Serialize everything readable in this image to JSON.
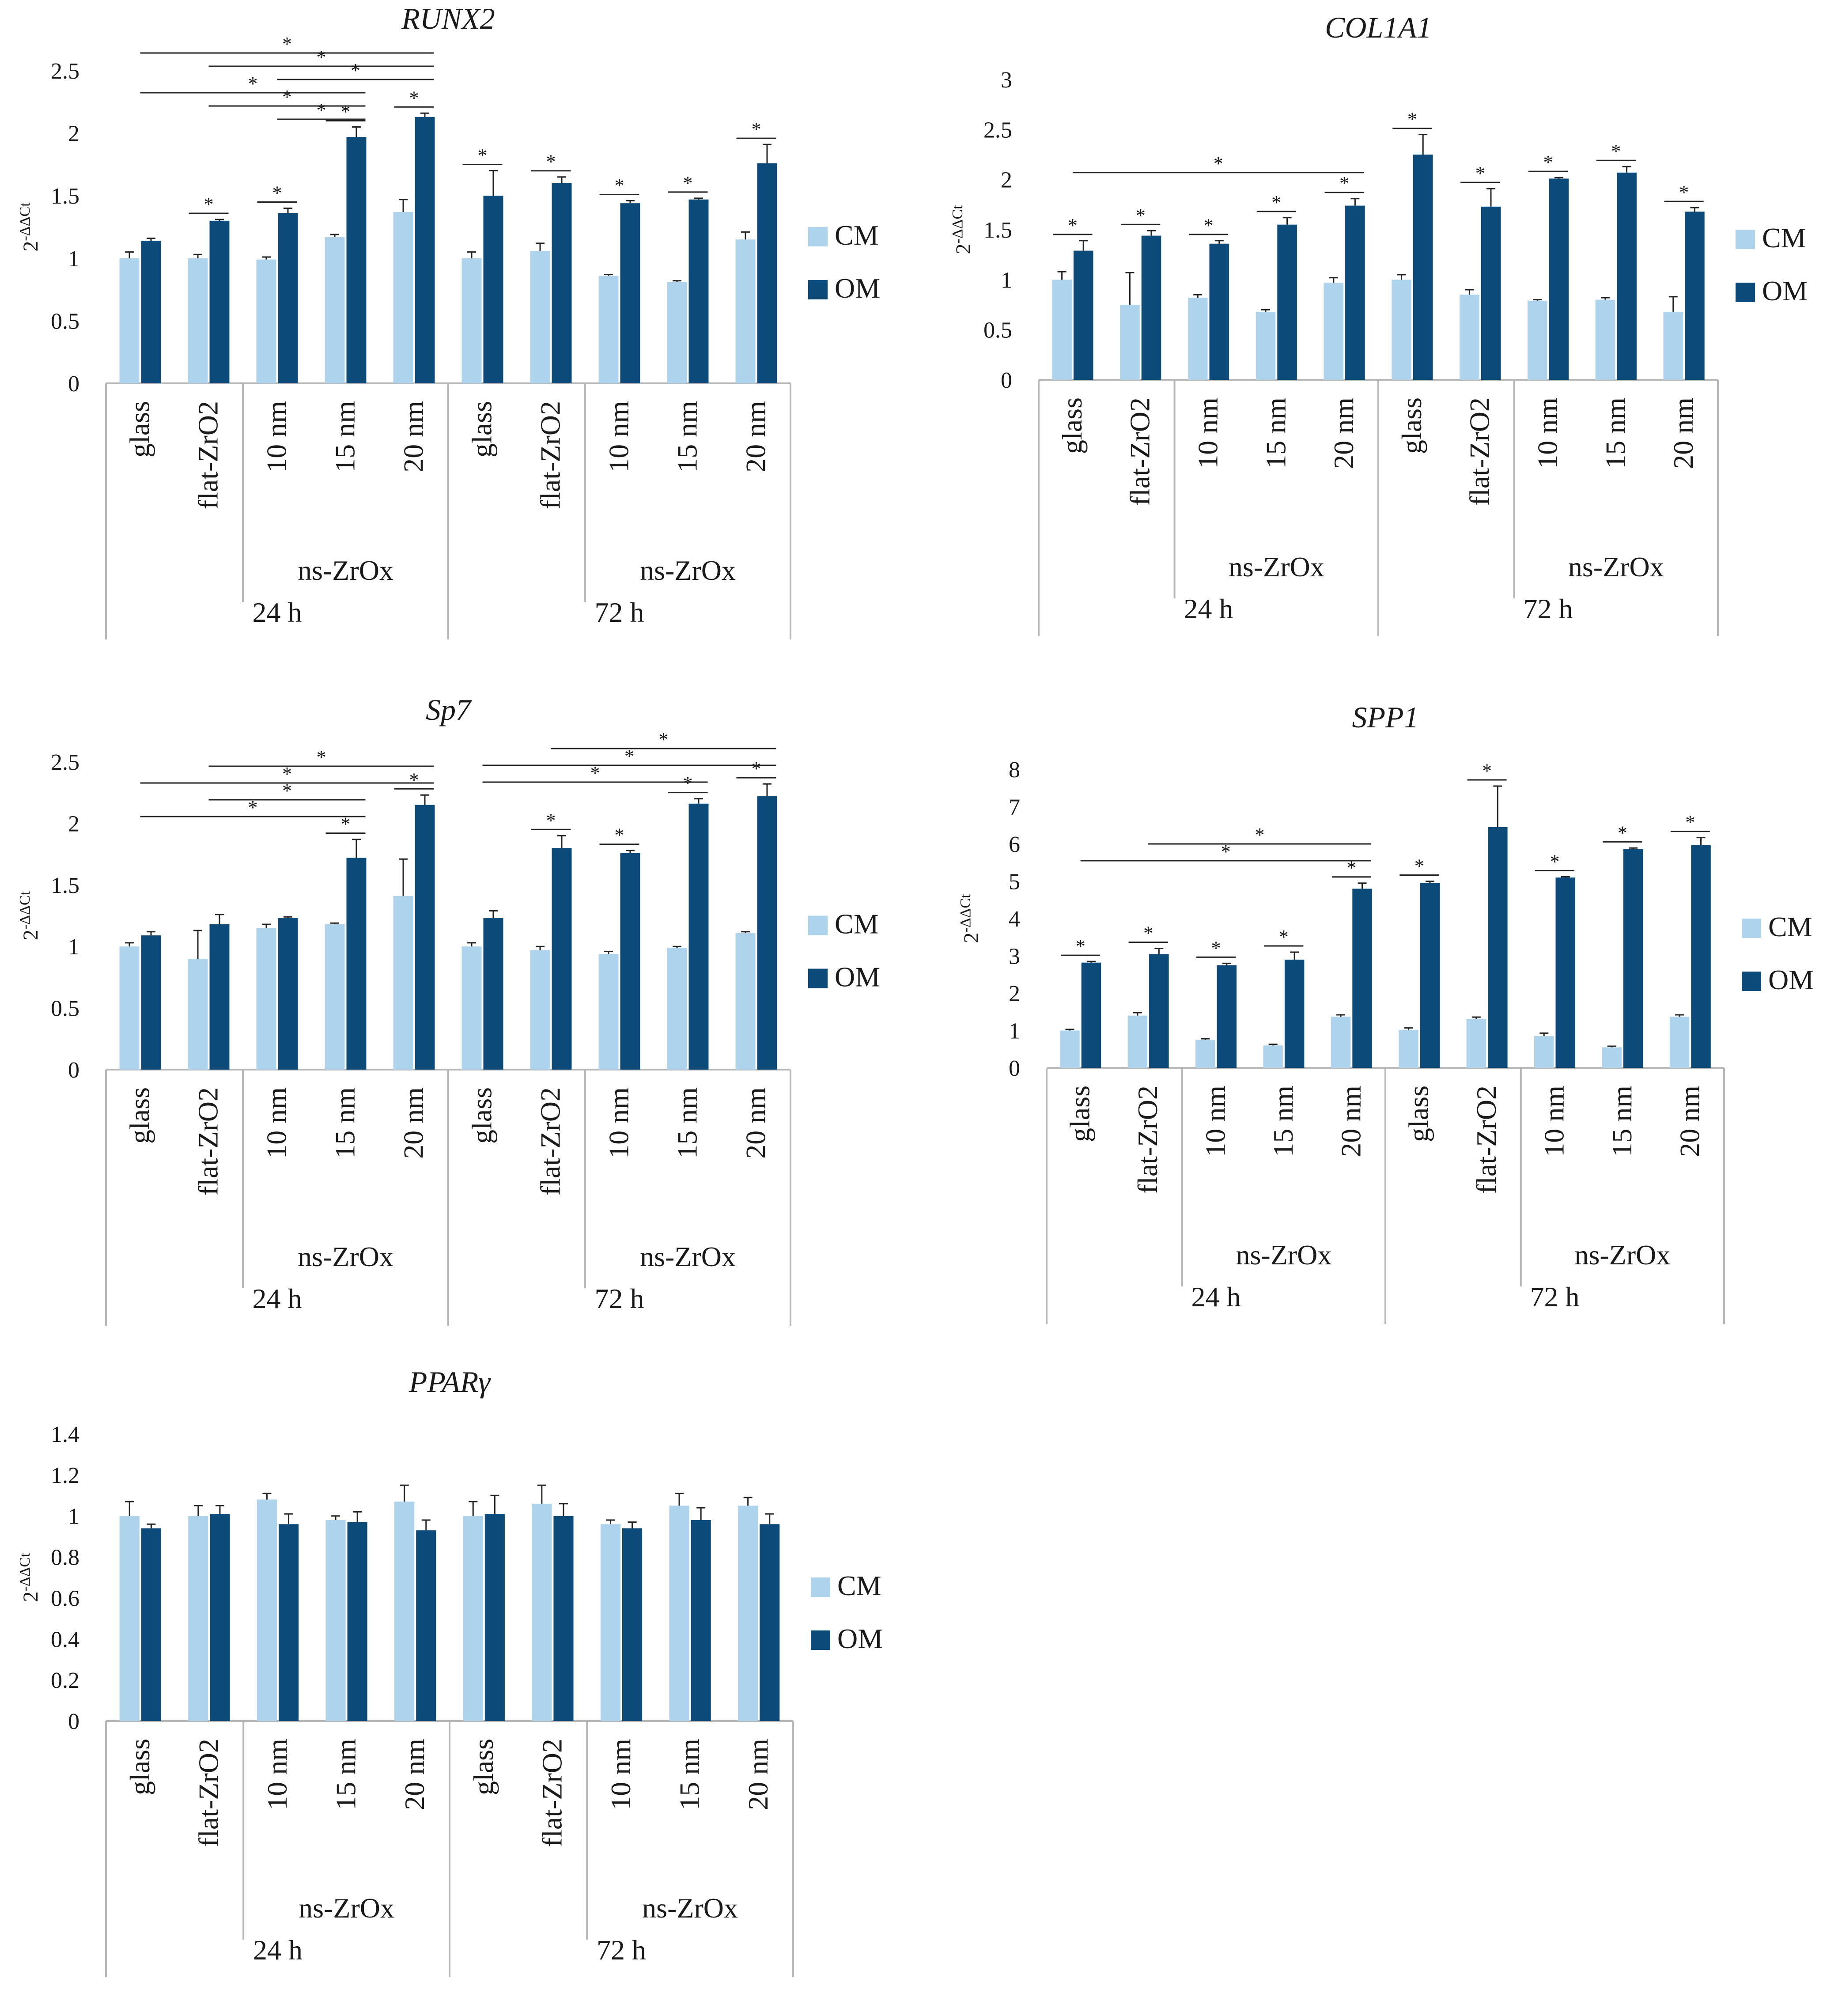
{
  "figure": {
    "categories": [
      "glass",
      "flat-ZrO2",
      "10 nm",
      "15 nm",
      "20 nm",
      "glass",
      "flat-ZrO2",
      "10 nm",
      "15 nm",
      "20 nm"
    ],
    "subgroup_label": "ns-ZrOx",
    "time_labels": [
      "24 h",
      "72 h"
    ],
    "ylabel": {
      "base": "2",
      "sup": "-ΔΔCt"
    },
    "legend": [
      "CM",
      "OM"
    ],
    "significance_mark": "*",
    "colors": {
      "CM": "#aed3ec",
      "OM": "#0c4a7a",
      "axis": "#b7b7b7",
      "text": "#1a1a1a"
    }
  },
  "chart_data": [
    {
      "type": "bar",
      "title": "RUNX2",
      "ylim": [
        0,
        2.5
      ],
      "ytick_labels": [
        "0",
        "0.5",
        "1",
        "1.5",
        "2",
        "2.5"
      ],
      "series": [
        {
          "name": "CM",
          "values": [
            1.0,
            1.0,
            0.99,
            1.17,
            1.37,
            1.0,
            1.06,
            0.86,
            0.81,
            1.15
          ],
          "errors": [
            0.05,
            0.03,
            0.02,
            0.02,
            0.1,
            0.05,
            0.06,
            0.01,
            0.01,
            0.06
          ]
        },
        {
          "name": "OM",
          "values": [
            1.14,
            1.3,
            1.36,
            1.97,
            2.13,
            1.5,
            1.6,
            1.44,
            1.47,
            1.76
          ],
          "errors": [
            0.02,
            0.01,
            0.04,
            0.08,
            0.03,
            0.2,
            0.05,
            0.02,
            0.01,
            0.15
          ]
        }
      ],
      "pair_significance": [
        1,
        2,
        3,
        4,
        5,
        6,
        7,
        8,
        9
      ],
      "brackets": [
        {
          "from": 0,
          "to": 4
        },
        {
          "from": 1,
          "to": 4
        },
        {
          "from": 2,
          "to": 4
        },
        {
          "from": 0,
          "to": 3
        },
        {
          "from": 1,
          "to": 3
        },
        {
          "from": 2,
          "to": 3
        }
      ]
    },
    {
      "type": "bar",
      "title": "COL1A1",
      "ylim": [
        0,
        3
      ],
      "ytick_labels": [
        "0",
        "0.5",
        "1",
        "1.5",
        "2",
        "2.5",
        "3"
      ],
      "series": [
        {
          "name": "CM",
          "values": [
            1.0,
            0.75,
            0.82,
            0.68,
            0.97,
            1.0,
            0.85,
            0.79,
            0.8,
            0.68
          ],
          "errors": [
            0.08,
            0.32,
            0.03,
            0.02,
            0.05,
            0.05,
            0.05,
            0.01,
            0.02,
            0.15
          ]
        },
        {
          "name": "OM",
          "values": [
            1.29,
            1.44,
            1.36,
            1.55,
            1.74,
            2.25,
            1.73,
            2.01,
            2.07,
            1.68
          ],
          "errors": [
            0.1,
            0.05,
            0.03,
            0.07,
            0.07,
            0.2,
            0.18,
            0.01,
            0.06,
            0.04
          ]
        }
      ],
      "pair_significance": [
        0,
        1,
        2,
        3,
        4,
        5,
        6,
        7,
        8,
        9
      ],
      "brackets": [
        {
          "from": 0,
          "to": 4
        }
      ]
    },
    {
      "type": "bar",
      "title": "Sp7",
      "ylim": [
        0,
        2.5
      ],
      "ytick_labels": [
        "0",
        "0.5",
        "1",
        "1.5",
        "2",
        "2.5"
      ],
      "series": [
        {
          "name": "CM",
          "values": [
            1.0,
            0.9,
            1.15,
            1.18,
            1.41,
            1.0,
            0.97,
            0.94,
            0.99,
            1.11
          ],
          "errors": [
            0.03,
            0.23,
            0.03,
            0.01,
            0.3,
            0.03,
            0.03,
            0.02,
            0.01,
            0.01
          ]
        },
        {
          "name": "OM",
          "values": [
            1.09,
            1.18,
            1.23,
            1.72,
            2.15,
            1.23,
            1.8,
            1.76,
            2.16,
            2.22
          ],
          "errors": [
            0.03,
            0.08,
            0.01,
            0.15,
            0.08,
            0.06,
            0.1,
            0.02,
            0.04,
            0.1
          ]
        }
      ],
      "pair_significance": [
        3,
        4,
        6,
        7,
        8,
        9
      ],
      "brackets": [
        {
          "from": 1,
          "to": 4
        },
        {
          "from": 0,
          "to": 4
        },
        {
          "from": 1,
          "to": 3
        },
        {
          "from": 0,
          "to": 3
        },
        {
          "from": 6,
          "to": 9
        },
        {
          "from": 5,
          "to": 9
        },
        {
          "from": 5,
          "to": 8
        }
      ]
    },
    {
      "type": "bar",
      "title": "SPP1",
      "ylim": [
        0,
        8
      ],
      "ytick_labels": [
        "0",
        "1",
        "2",
        "3",
        "4",
        "5",
        "6",
        "7",
        "8"
      ],
      "series": [
        {
          "name": "CM",
          "values": [
            1.0,
            1.4,
            0.75,
            0.6,
            1.37,
            1.02,
            1.31,
            0.85,
            0.55,
            1.37
          ],
          "errors": [
            0.03,
            0.08,
            0.03,
            0.03,
            0.05,
            0.05,
            0.05,
            0.08,
            0.03,
            0.05
          ]
        },
        {
          "name": "OM",
          "values": [
            2.82,
            3.05,
            2.75,
            2.9,
            4.8,
            4.95,
            6.45,
            5.1,
            5.87,
            5.97
          ],
          "errors": [
            0.03,
            0.15,
            0.05,
            0.2,
            0.15,
            0.05,
            1.1,
            0.02,
            0.02,
            0.2
          ]
        }
      ],
      "pair_significance": [
        0,
        1,
        2,
        3,
        4,
        5,
        6,
        7,
        8,
        9
      ],
      "brackets": [
        {
          "from": 1,
          "to": 4
        },
        {
          "from": 0,
          "to": 4
        }
      ]
    },
    {
      "type": "bar",
      "title": "PPARγ",
      "ylim": [
        0,
        1.4
      ],
      "ytick_labels": [
        "0",
        "0.2",
        "0.4",
        "0.6",
        "0.8",
        "1",
        "1.2",
        "1.4"
      ],
      "series": [
        {
          "name": "CM",
          "values": [
            1.0,
            1.0,
            1.08,
            0.98,
            1.07,
            1.0,
            1.06,
            0.96,
            1.05,
            1.05
          ],
          "errors": [
            0.07,
            0.05,
            0.03,
            0.02,
            0.08,
            0.07,
            0.09,
            0.02,
            0.06,
            0.04
          ]
        },
        {
          "name": "OM",
          "values": [
            0.94,
            1.01,
            0.96,
            0.97,
            0.93,
            1.01,
            1.0,
            0.94,
            0.98,
            0.96
          ],
          "errors": [
            0.02,
            0.04,
            0.05,
            0.05,
            0.05,
            0.09,
            0.06,
            0.03,
            0.06,
            0.05
          ]
        }
      ],
      "pair_significance": [],
      "brackets": []
    }
  ]
}
